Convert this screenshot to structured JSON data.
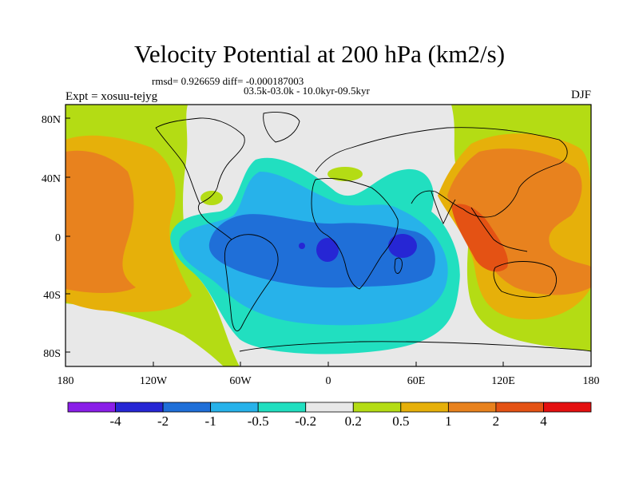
{
  "title": "Velocity Potential at 200 hPa (km2/s)",
  "stats_line": "rmsd= 0.926659 diff= -0.000187003",
  "period_line": "03.5k-03.0k - 10.0kyr-09.5kyr",
  "experiment": "Expt = xosuu-tejyg",
  "season": "DJF",
  "lat_labels": [
    "80N",
    "40N",
    "0",
    "40S",
    "80S"
  ],
  "lon_labels": [
    "180",
    "120W",
    "60W",
    "0",
    "60E",
    "120E",
    "180"
  ],
  "colorbar": {
    "labels": [
      "-4",
      "-2",
      "-1",
      "-0.5",
      "-0.2",
      "0.2",
      "0.5",
      "1",
      "2",
      "4"
    ],
    "colors": [
      "#8a1ee8",
      "#2626d4",
      "#1f6fd8",
      "#27b2ea",
      "#21dfc0",
      "#e8e8e8",
      "#b4dc14",
      "#e6b00a",
      "#e8821e",
      "#e45214",
      "#e41010"
    ]
  },
  "background_color": "#b4dc14"
}
